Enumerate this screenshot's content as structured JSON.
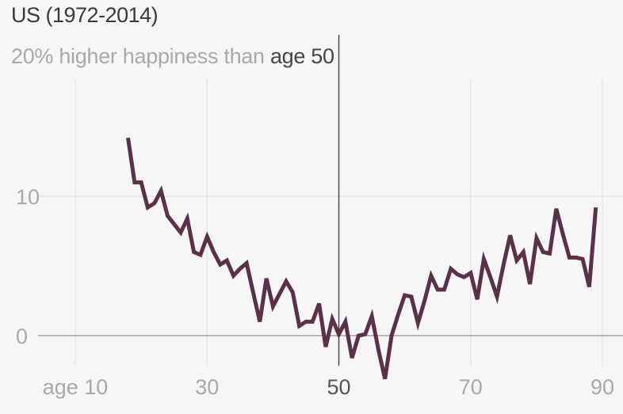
{
  "chart_data": {
    "type": "line",
    "title": "US (1972-2014)",
    "subtitle_prefix": "20% higher happiness than",
    "subtitle_highlight": "age 50",
    "xlabel": "",
    "ylabel": "",
    "xlim": [
      5,
      92
    ],
    "ylim": [
      -3.5,
      20
    ],
    "x_ticks": [
      {
        "value": 10,
        "label": "age 10"
      },
      {
        "value": 30,
        "label": "30"
      },
      {
        "value": 50,
        "label": "50"
      },
      {
        "value": 70,
        "label": "70"
      },
      {
        "value": 90,
        "label": "90"
      }
    ],
    "y_ticks": [
      {
        "value": 0,
        "label": "0"
      },
      {
        "value": 10,
        "label": "10"
      }
    ],
    "reference_x": 50,
    "grid": true,
    "line_color": "#5b3049",
    "series": [
      {
        "x": [
          18,
          19,
          20,
          21,
          22,
          23,
          24,
          25,
          26,
          27,
          28,
          29,
          30,
          31,
          32,
          33,
          34,
          35,
          36,
          37,
          38,
          39,
          40,
          41,
          42,
          43,
          44,
          45,
          46,
          47,
          48,
          49,
          50,
          51,
          52,
          53,
          54,
          55,
          56,
          57,
          58,
          59,
          60,
          61,
          62,
          63,
          64,
          65,
          66,
          67,
          68,
          69,
          70,
          71,
          72,
          73,
          74,
          75,
          76,
          77,
          78,
          79,
          80,
          81,
          82,
          83,
          84,
          85,
          86,
          87,
          88,
          89
        ],
        "y": [
          14.2,
          11.0,
          11.0,
          9.2,
          9.5,
          10.4,
          8.6,
          8.0,
          7.4,
          8.4,
          6.0,
          5.8,
          7.1,
          6.0,
          5.1,
          5.4,
          4.3,
          4.8,
          5.2,
          3.1,
          1.0,
          4.1,
          2.1,
          3.0,
          3.9,
          3.1,
          0.7,
          1.0,
          1.0,
          2.3,
          -0.8,
          1.2,
          0.1,
          1.0,
          -1.6,
          0.0,
          0.1,
          1.4,
          -1.0,
          -3.1,
          0.0,
          1.5,
          2.9,
          2.8,
          0.9,
          2.5,
          4.3,
          3.3,
          3.3,
          4.8,
          4.4,
          4.2,
          4.5,
          2.6,
          5.5,
          4.2,
          2.8,
          5.1,
          7.2,
          5.4,
          6.0,
          3.7,
          7.0,
          6.0,
          5.9,
          9.1,
          7.3,
          5.6,
          5.6,
          5.5,
          3.5,
          9.2
        ]
      }
    ]
  }
}
